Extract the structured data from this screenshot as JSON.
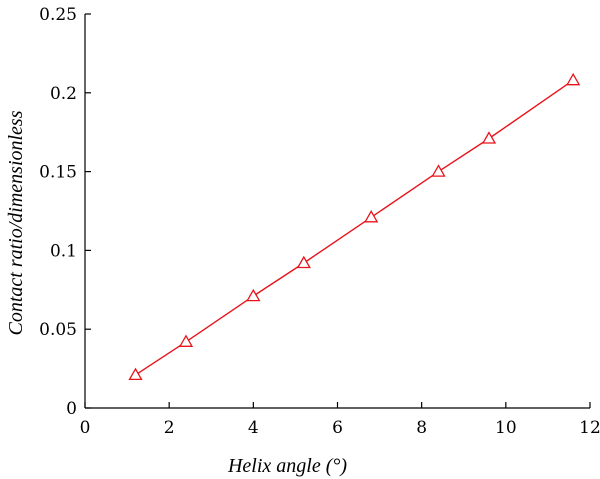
{
  "chart_data": {
    "type": "line",
    "title": "",
    "xlabel": "Helix angle (°)",
    "ylabel": "Contact ratio/dimensionless",
    "xlim": [
      0,
      12
    ],
    "ylim": [
      0,
      0.25
    ],
    "xticks": [
      0,
      2,
      4,
      6,
      8,
      10,
      12
    ],
    "yticks": [
      0,
      0.05,
      0.1,
      0.15,
      0.2,
      0.25
    ],
    "xtick_labels": [
      "0",
      "2",
      "4",
      "6",
      "8",
      "10",
      "12"
    ],
    "ytick_labels": [
      "0",
      "0.05",
      "0.1",
      "0.15",
      "0.2",
      "0.25"
    ],
    "grid": false,
    "legend": "none",
    "series": [
      {
        "color": "#e8141b",
        "marker": "triangle-open",
        "x": [
          1.2,
          2.4,
          4.0,
          5.2,
          6.8,
          8.4,
          9.6,
          11.6
        ],
        "y": [
          0.021,
          0.042,
          0.071,
          0.092,
          0.121,
          0.15,
          0.171,
          0.208
        ]
      }
    ]
  }
}
